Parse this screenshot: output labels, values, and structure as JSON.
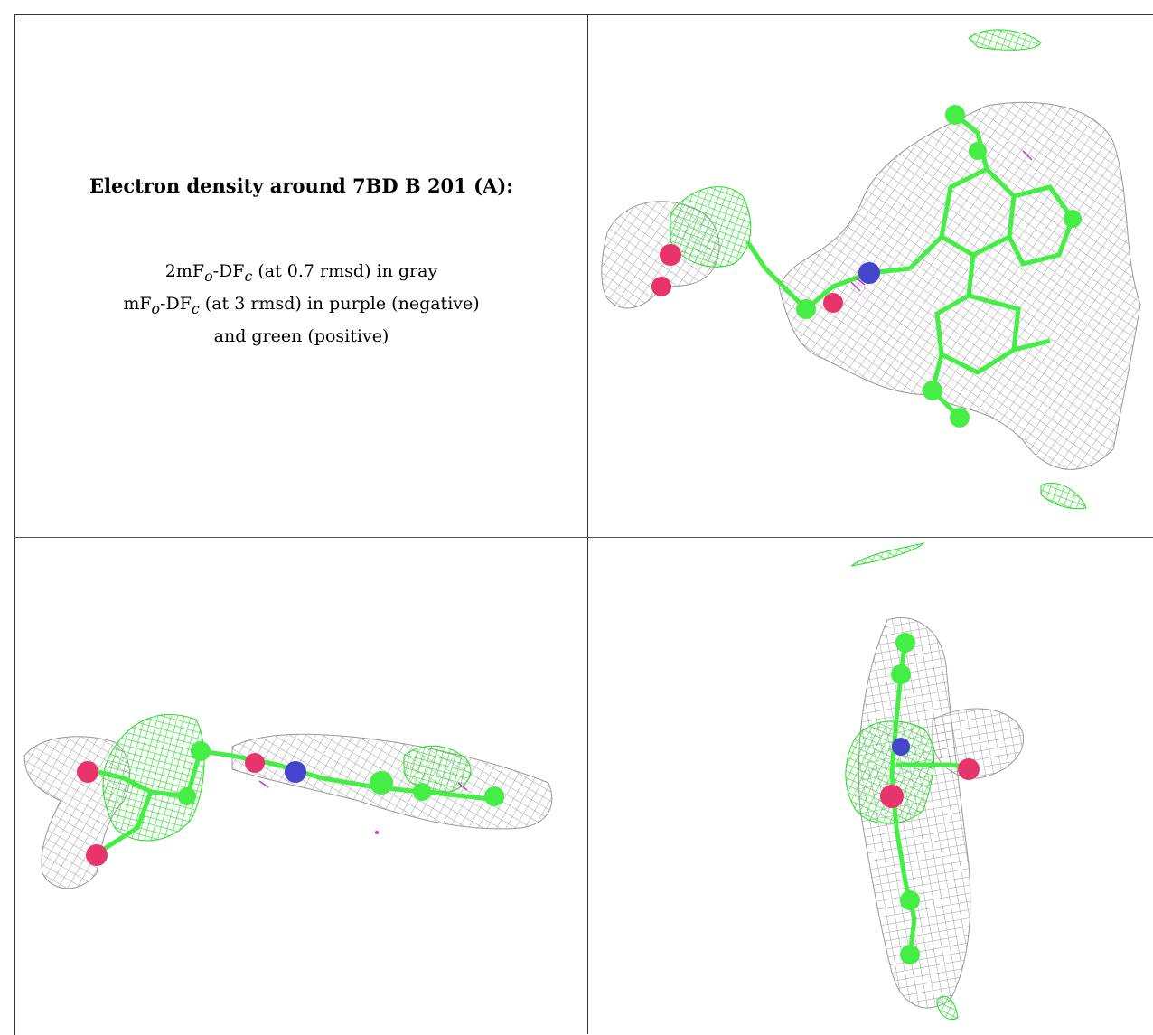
{
  "caption": {
    "title": "Electron density around 7BD B 201 (A):",
    "legend_line1_prefix": "2mF",
    "legend_line1_sub_o": "o",
    "legend_line1_mid": "-DF",
    "legend_line1_sub_c": "c",
    "legend_line1_suffix": " (at 0.7 rmsd) in gray",
    "legend_line2_prefix": "mF",
    "legend_line2_sub_o": "o",
    "legend_line2_mid": "-DF",
    "legend_line2_sub_c": "c",
    "legend_line2_suffix": " (at 3 rmsd) in purple (negative)",
    "legend_line3": "and green (positive)"
  },
  "colors": {
    "density_2fofc": "#a8a8a8",
    "density_positive": "#33ee33",
    "density_negative": "#cc33cc",
    "carbon": "#44ee44",
    "oxygen": "#e8336b",
    "nitrogen": "#4444cc",
    "border": "#333333"
  },
  "panels": [
    {
      "name": "view-top-right",
      "description_icon": "ligand-density-front-view"
    },
    {
      "name": "view-bottom-left",
      "description_icon": "ligand-density-side-view"
    },
    {
      "name": "view-bottom-right",
      "description_icon": "ligand-density-end-view"
    }
  ]
}
